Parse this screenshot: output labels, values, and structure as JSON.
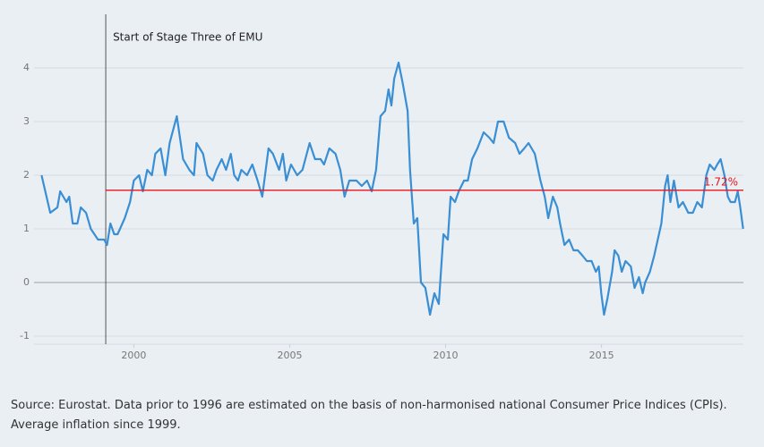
{
  "chart_data": {
    "type": "line",
    "series": [
      {
        "color": "#3a8fd4",
        "x": [
          1997.04,
          1997.32,
          1997.55,
          1997.64,
          1997.84,
          1997.93,
          1998.04,
          1998.19,
          1998.3,
          1998.47,
          1998.62,
          1998.85,
          1999.05,
          1999.14,
          1999.25,
          1999.37,
          1999.48,
          1999.71,
          1999.88,
          2000.0,
          2000.17,
          2000.29,
          2000.43,
          2000.58,
          2000.69,
          2000.86,
          2001.01,
          2001.15,
          2001.38,
          2001.58,
          2001.78,
          2001.93,
          2002.01,
          2002.22,
          2002.36,
          2002.53,
          2002.65,
          2002.82,
          2002.96,
          2003.11,
          2003.22,
          2003.34,
          2003.45,
          2003.63,
          2003.8,
          2003.97,
          2004.12,
          2004.32,
          2004.46,
          2004.66,
          2004.78,
          2004.89,
          2005.04,
          2005.24,
          2005.41,
          2005.64,
          2005.81,
          2005.99,
          2006.1,
          2006.27,
          2006.47,
          2006.62,
          2006.76,
          2006.91,
          2007.14,
          2007.31,
          2007.48,
          2007.63,
          2007.77,
          2007.91,
          2008.06,
          2008.17,
          2008.26,
          2008.35,
          2008.49,
          2008.63,
          2008.78,
          2008.86,
          2008.98,
          2009.09,
          2009.21,
          2009.35,
          2009.5,
          2009.64,
          2009.78,
          2009.93,
          2010.07,
          2010.16,
          2010.3,
          2010.42,
          2010.59,
          2010.71,
          2010.85,
          2011.02,
          2011.22,
          2011.4,
          2011.54,
          2011.68,
          2011.86,
          2012.03,
          2012.23,
          2012.37,
          2012.52,
          2012.66,
          2012.86,
          2013.04,
          2013.18,
          2013.29,
          2013.44,
          2013.58,
          2013.67,
          2013.81,
          2013.96,
          2014.1,
          2014.24,
          2014.39,
          2014.53,
          2014.68,
          2014.82,
          2014.91,
          2014.99,
          2015.08,
          2015.19,
          2015.34,
          2015.42,
          2015.54,
          2015.65,
          2015.77,
          2015.94,
          2016.06,
          2016.2,
          2016.32,
          2016.4,
          2016.55,
          2016.69,
          2016.92,
          2017.04,
          2017.12,
          2017.21,
          2017.32,
          2017.47,
          2017.61,
          2017.78,
          2017.93,
          2018.07,
          2018.22,
          2018.36,
          2018.47,
          2018.62,
          2018.71,
          2018.82,
          2018.94,
          2019.05,
          2019.14,
          2019.28,
          2019.37,
          2019.45,
          2019.54
        ],
        "values": [
          2.0,
          1.3,
          1.4,
          1.7,
          1.5,
          1.6,
          1.1,
          1.1,
          1.4,
          1.3,
          1.0,
          0.8,
          0.8,
          0.7,
          1.1,
          0.9,
          0.9,
          1.2,
          1.5,
          1.9,
          2.0,
          1.7,
          2.1,
          2.0,
          2.4,
          2.5,
          2.0,
          2.6,
          3.1,
          2.3,
          2.1,
          2.0,
          2.6,
          2.4,
          2.0,
          1.9,
          2.1,
          2.3,
          2.1,
          2.4,
          2.0,
          1.9,
          2.1,
          2.0,
          2.2,
          1.9,
          1.6,
          2.5,
          2.4,
          2.1,
          2.4,
          1.9,
          2.2,
          2.0,
          2.1,
          2.6,
          2.3,
          2.3,
          2.2,
          2.5,
          2.4,
          2.1,
          1.6,
          1.9,
          1.9,
          1.8,
          1.9,
          1.7,
          2.1,
          3.1,
          3.2,
          3.6,
          3.3,
          3.8,
          4.1,
          3.7,
          3.2,
          2.1,
          1.1,
          1.2,
          0.0,
          -0.1,
          -0.6,
          -0.2,
          -0.4,
          0.9,
          0.8,
          1.6,
          1.5,
          1.7,
          1.9,
          1.9,
          2.3,
          2.5,
          2.8,
          2.7,
          2.6,
          3.0,
          3.0,
          2.7,
          2.6,
          2.4,
          2.5,
          2.6,
          2.4,
          1.9,
          1.6,
          1.2,
          1.6,
          1.4,
          1.1,
          0.7,
          0.8,
          0.6,
          0.6,
          0.5,
          0.4,
          0.4,
          0.2,
          0.3,
          -0.2,
          -0.6,
          -0.3,
          0.2,
          0.6,
          0.5,
          0.2,
          0.4,
          0.3,
          -0.1,
          0.1,
          -0.2,
          0.0,
          0.2,
          0.5,
          1.1,
          1.8,
          2.0,
          1.5,
          1.9,
          1.4,
          1.5,
          1.3,
          1.3,
          1.5,
          1.4,
          2.0,
          2.2,
          2.1,
          2.2,
          2.3,
          2.0,
          1.6,
          1.5,
          1.5,
          1.7,
          1.4,
          1.0
        ]
      }
    ],
    "xlim": [
      1996.8,
      2019.55
    ],
    "xticks": [
      2000,
      2005,
      2010,
      2015
    ],
    "ylim": [
      -1.15,
      5
    ],
    "yticks": [
      -1,
      0,
      1,
      2,
      3,
      4
    ],
    "grid": true,
    "event": {
      "x": 1999.1,
      "label": "Start of Stage Three of EMU"
    },
    "average": {
      "value": 1.72,
      "label": "1.72%",
      "color": "#e8141b"
    },
    "note": "Source: Eurostat. Data prior to 1996 are estimated on the basis of non-harmonised national Consumer Price Indices (CPIs). Average inflation since 1999."
  }
}
